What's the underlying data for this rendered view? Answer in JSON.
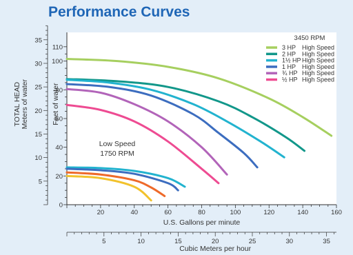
{
  "title": "Performance Curves",
  "chart_data": {
    "type": "line",
    "title": "Performance Curves",
    "xlabel": "U.S. Gallons per minute",
    "ylabel": "Feet of water",
    "xlim": [
      0,
      160
    ],
    "ylim": [
      0,
      120
    ],
    "x_ticks": [
      20,
      40,
      60,
      80,
      100,
      120,
      140,
      160
    ],
    "y_ticks": [
      0,
      20,
      40,
      60,
      80,
      100,
      110
    ],
    "secondary_y": {
      "label_line1": "TOTAL HEAD",
      "label_line2": "Meters of water",
      "ticks": [
        5,
        10,
        15,
        20,
        25,
        30,
        35
      ]
    },
    "secondary_x": {
      "label": "Cubic Meters per hour",
      "ticks": [
        5,
        10,
        15,
        20,
        25,
        30,
        35
      ]
    },
    "legend": {
      "header": "3450 RPM",
      "placement": "top-right",
      "entries": [
        {
          "hp": "3 HP",
          "speed": "High Speed",
          "color": "#a6cf5f"
        },
        {
          "hp": "2 HP",
          "speed": "High Speed",
          "color": "#12978a"
        },
        {
          "hp": "1½ HP",
          "speed": "High Speed",
          "color": "#22b3cf"
        },
        {
          "hp": "1 HP",
          "speed": "High Speed",
          "color": "#3c6dbf"
        },
        {
          "hp": "¾ HP",
          "speed": "High Speed",
          "color": "#b264b9"
        },
        {
          "hp": "½ HP",
          "speed": "High Speed",
          "color": "#ee4b92"
        }
      ]
    },
    "annotation": {
      "line1": "Low Speed",
      "line2": "1750 RPM"
    },
    "series": [
      {
        "color": "#a6cf5f",
        "x": [
          0,
          30,
          60,
          90,
          120,
          140,
          157
        ],
        "y": [
          101.5,
          100,
          96,
          88,
          74,
          61,
          48
        ]
      },
      {
        "color": "#12978a",
        "x": [
          0,
          30,
          60,
          90,
          110,
          130,
          141
        ],
        "y": [
          87.5,
          86,
          82,
          72,
          61,
          47,
          37.5
        ]
      },
      {
        "color": "#22b3cf",
        "x": [
          0,
          25,
          50,
          75,
          95,
          115,
          129
        ],
        "y": [
          87,
          85,
          80,
          70,
          58,
          44,
          33
        ]
      },
      {
        "color": "#3c6dbf",
        "x": [
          0,
          25,
          50,
          75,
          90,
          105,
          113
        ],
        "y": [
          84,
          82,
          76,
          63,
          50,
          36,
          26
        ]
      },
      {
        "color": "#b264b9",
        "x": [
          0,
          20,
          40,
          60,
          80,
          95
        ],
        "y": [
          80.5,
          78,
          70,
          58,
          40,
          21
        ]
      },
      {
        "color": "#ee4b92",
        "x": [
          0,
          20,
          40,
          60,
          80,
          90
        ],
        "y": [
          69.5,
          66,
          58,
          44,
          25,
          15
        ]
      },
      {
        "color": "#22b3cf",
        "x": [
          0,
          20,
          40,
          60,
          70
        ],
        "y": [
          26,
          25.5,
          23.5,
          18.5,
          12.5
        ]
      },
      {
        "color": "#3c6dbf",
        "x": [
          0,
          20,
          40,
          60,
          66
        ],
        "y": [
          25,
          24,
          21.5,
          15,
          10
        ]
      },
      {
        "color": "#ee6a2a",
        "x": [
          0,
          20,
          40,
          50,
          58
        ],
        "y": [
          22.5,
          21,
          17,
          12,
          6
        ]
      },
      {
        "color": "#f2c22c",
        "x": [
          0,
          20,
          40,
          50
        ],
        "y": [
          20,
          18.5,
          12.5,
          3
        ]
      }
    ]
  }
}
